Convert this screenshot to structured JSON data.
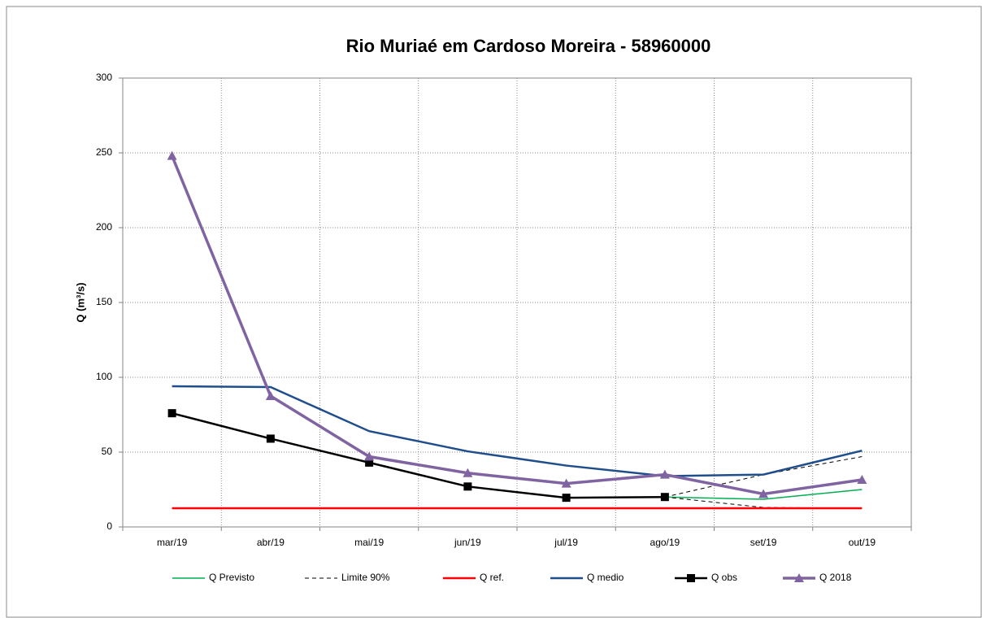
{
  "chart_data": {
    "type": "line",
    "title": "Rio Muriaé em Cardoso Moreira - 58960000",
    "ylabel": "Q (m³/s)",
    "categories": [
      "mar/19",
      "abr/19",
      "mai/19",
      "jun/19",
      "jul/19",
      "ago/19",
      "set/19",
      "out/19"
    ],
    "ylim": [
      0,
      300
    ],
    "yticks": [
      0,
      50,
      100,
      150,
      200,
      250,
      300
    ],
    "grid": true,
    "legend": "bottom",
    "series": [
      {
        "name": "Q Previsto",
        "color": "#00b050",
        "width": 1.5,
        "values": [
          null,
          null,
          null,
          null,
          null,
          20,
          18.5,
          25
        ]
      },
      {
        "name": "Limite 90%",
        "color": "#000000",
        "width": 1,
        "dash": true,
        "values": [
          null,
          null,
          null,
          null,
          null,
          20,
          35,
          47
        ],
        "lower": [
          null,
          null,
          null,
          null,
          null,
          20,
          13,
          12.5
        ]
      },
      {
        "name": "Q ref.",
        "color": "#ff0000",
        "width": 2.5,
        "values": [
          12.5,
          12.5,
          12.5,
          12.5,
          12.5,
          12.5,
          12.5,
          12.5
        ]
      },
      {
        "name": "Q medio",
        "color": "#1f4e8c",
        "width": 2.5,
        "values": [
          94,
          93.5,
          64,
          50.5,
          41,
          34,
          35,
          51
        ]
      },
      {
        "name": "Q obs",
        "color": "#000000",
        "width": 2.5,
        "marker": "square",
        "values": [
          76,
          59,
          43,
          27,
          19.5,
          20,
          null,
          null
        ]
      },
      {
        "name": "Q 2018",
        "color": "#8064a2",
        "width": 3.5,
        "marker": "triangle",
        "values": [
          248,
          87.5,
          47,
          36,
          29,
          35,
          22,
          31.5
        ]
      }
    ]
  }
}
